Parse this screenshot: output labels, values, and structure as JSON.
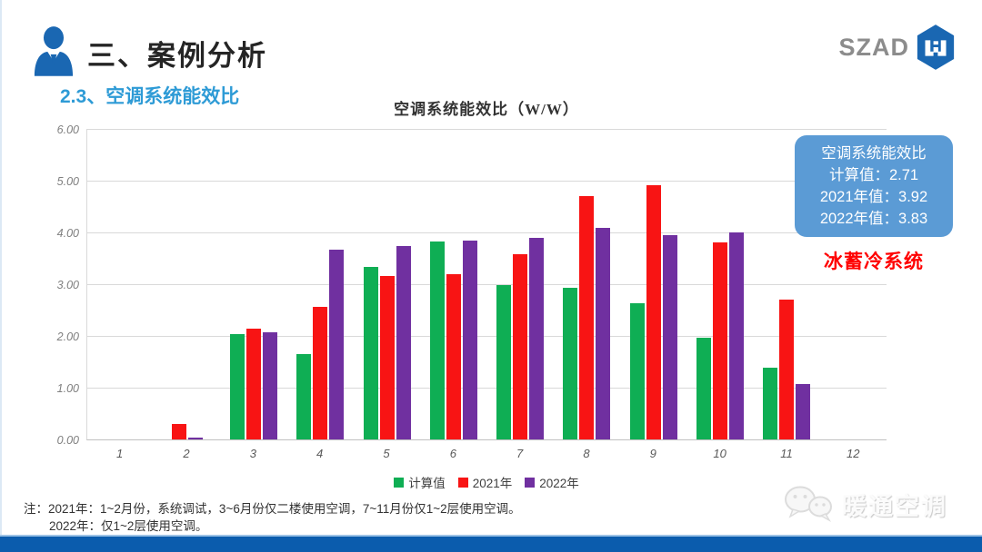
{
  "header": {
    "title": "三、案例分析",
    "subtitle": "2.3、空调系统能效比",
    "logo_text": "SZAD"
  },
  "chart_data": {
    "type": "bar",
    "title": "空调系统能效比（W/W）",
    "categories": [
      "1",
      "2",
      "3",
      "4",
      "5",
      "6",
      "7",
      "8",
      "9",
      "10",
      "11",
      "12"
    ],
    "series": [
      {
        "name": "计算值",
        "color": "#0FAE54",
        "values": [
          0,
          0,
          2.03,
          1.65,
          3.33,
          3.83,
          2.99,
          2.93,
          2.63,
          1.97,
          1.38,
          0
        ]
      },
      {
        "name": "2021年",
        "color": "#F81414",
        "values": [
          0,
          0.29,
          2.14,
          2.57,
          3.15,
          3.2,
          3.58,
          4.7,
          4.92,
          3.8,
          2.7,
          0
        ]
      },
      {
        "name": "2022年",
        "color": "#7030A0",
        "values": [
          0,
          0.03,
          2.07,
          3.67,
          3.74,
          3.85,
          3.89,
          4.08,
          3.94,
          4.0,
          1.07,
          0
        ]
      }
    ],
    "ylim": [
      0,
      6
    ],
    "ytick_step": 1,
    "ytick_labels": [
      "0.00",
      "1.00",
      "2.00",
      "3.00",
      "4.00",
      "5.00",
      "6.00"
    ],
    "grid": true,
    "legend_position": "bottom"
  },
  "info_box": {
    "bg": "#5B9BD5",
    "lines": [
      "空调系统能效比",
      "计算值：2.71",
      "2021年值：3.92",
      "2022年值：3.83"
    ]
  },
  "system_label": {
    "text": "冰蓄冷系统",
    "color": "#FF0000"
  },
  "note": {
    "line1": "注：2021年：1~2月份，系统调试，3~6月份仅二楼使用空调，7~11月份仅1~2层使用空调。",
    "line2": "2022年：仅1~2层使用空调。"
  },
  "watermark": {
    "text": "暖通空调"
  },
  "colors": {
    "accent_blue": "#2E9BD6",
    "icon_blue": "#1A67B2",
    "bottom_bar_blue": "#0B5CAD"
  }
}
